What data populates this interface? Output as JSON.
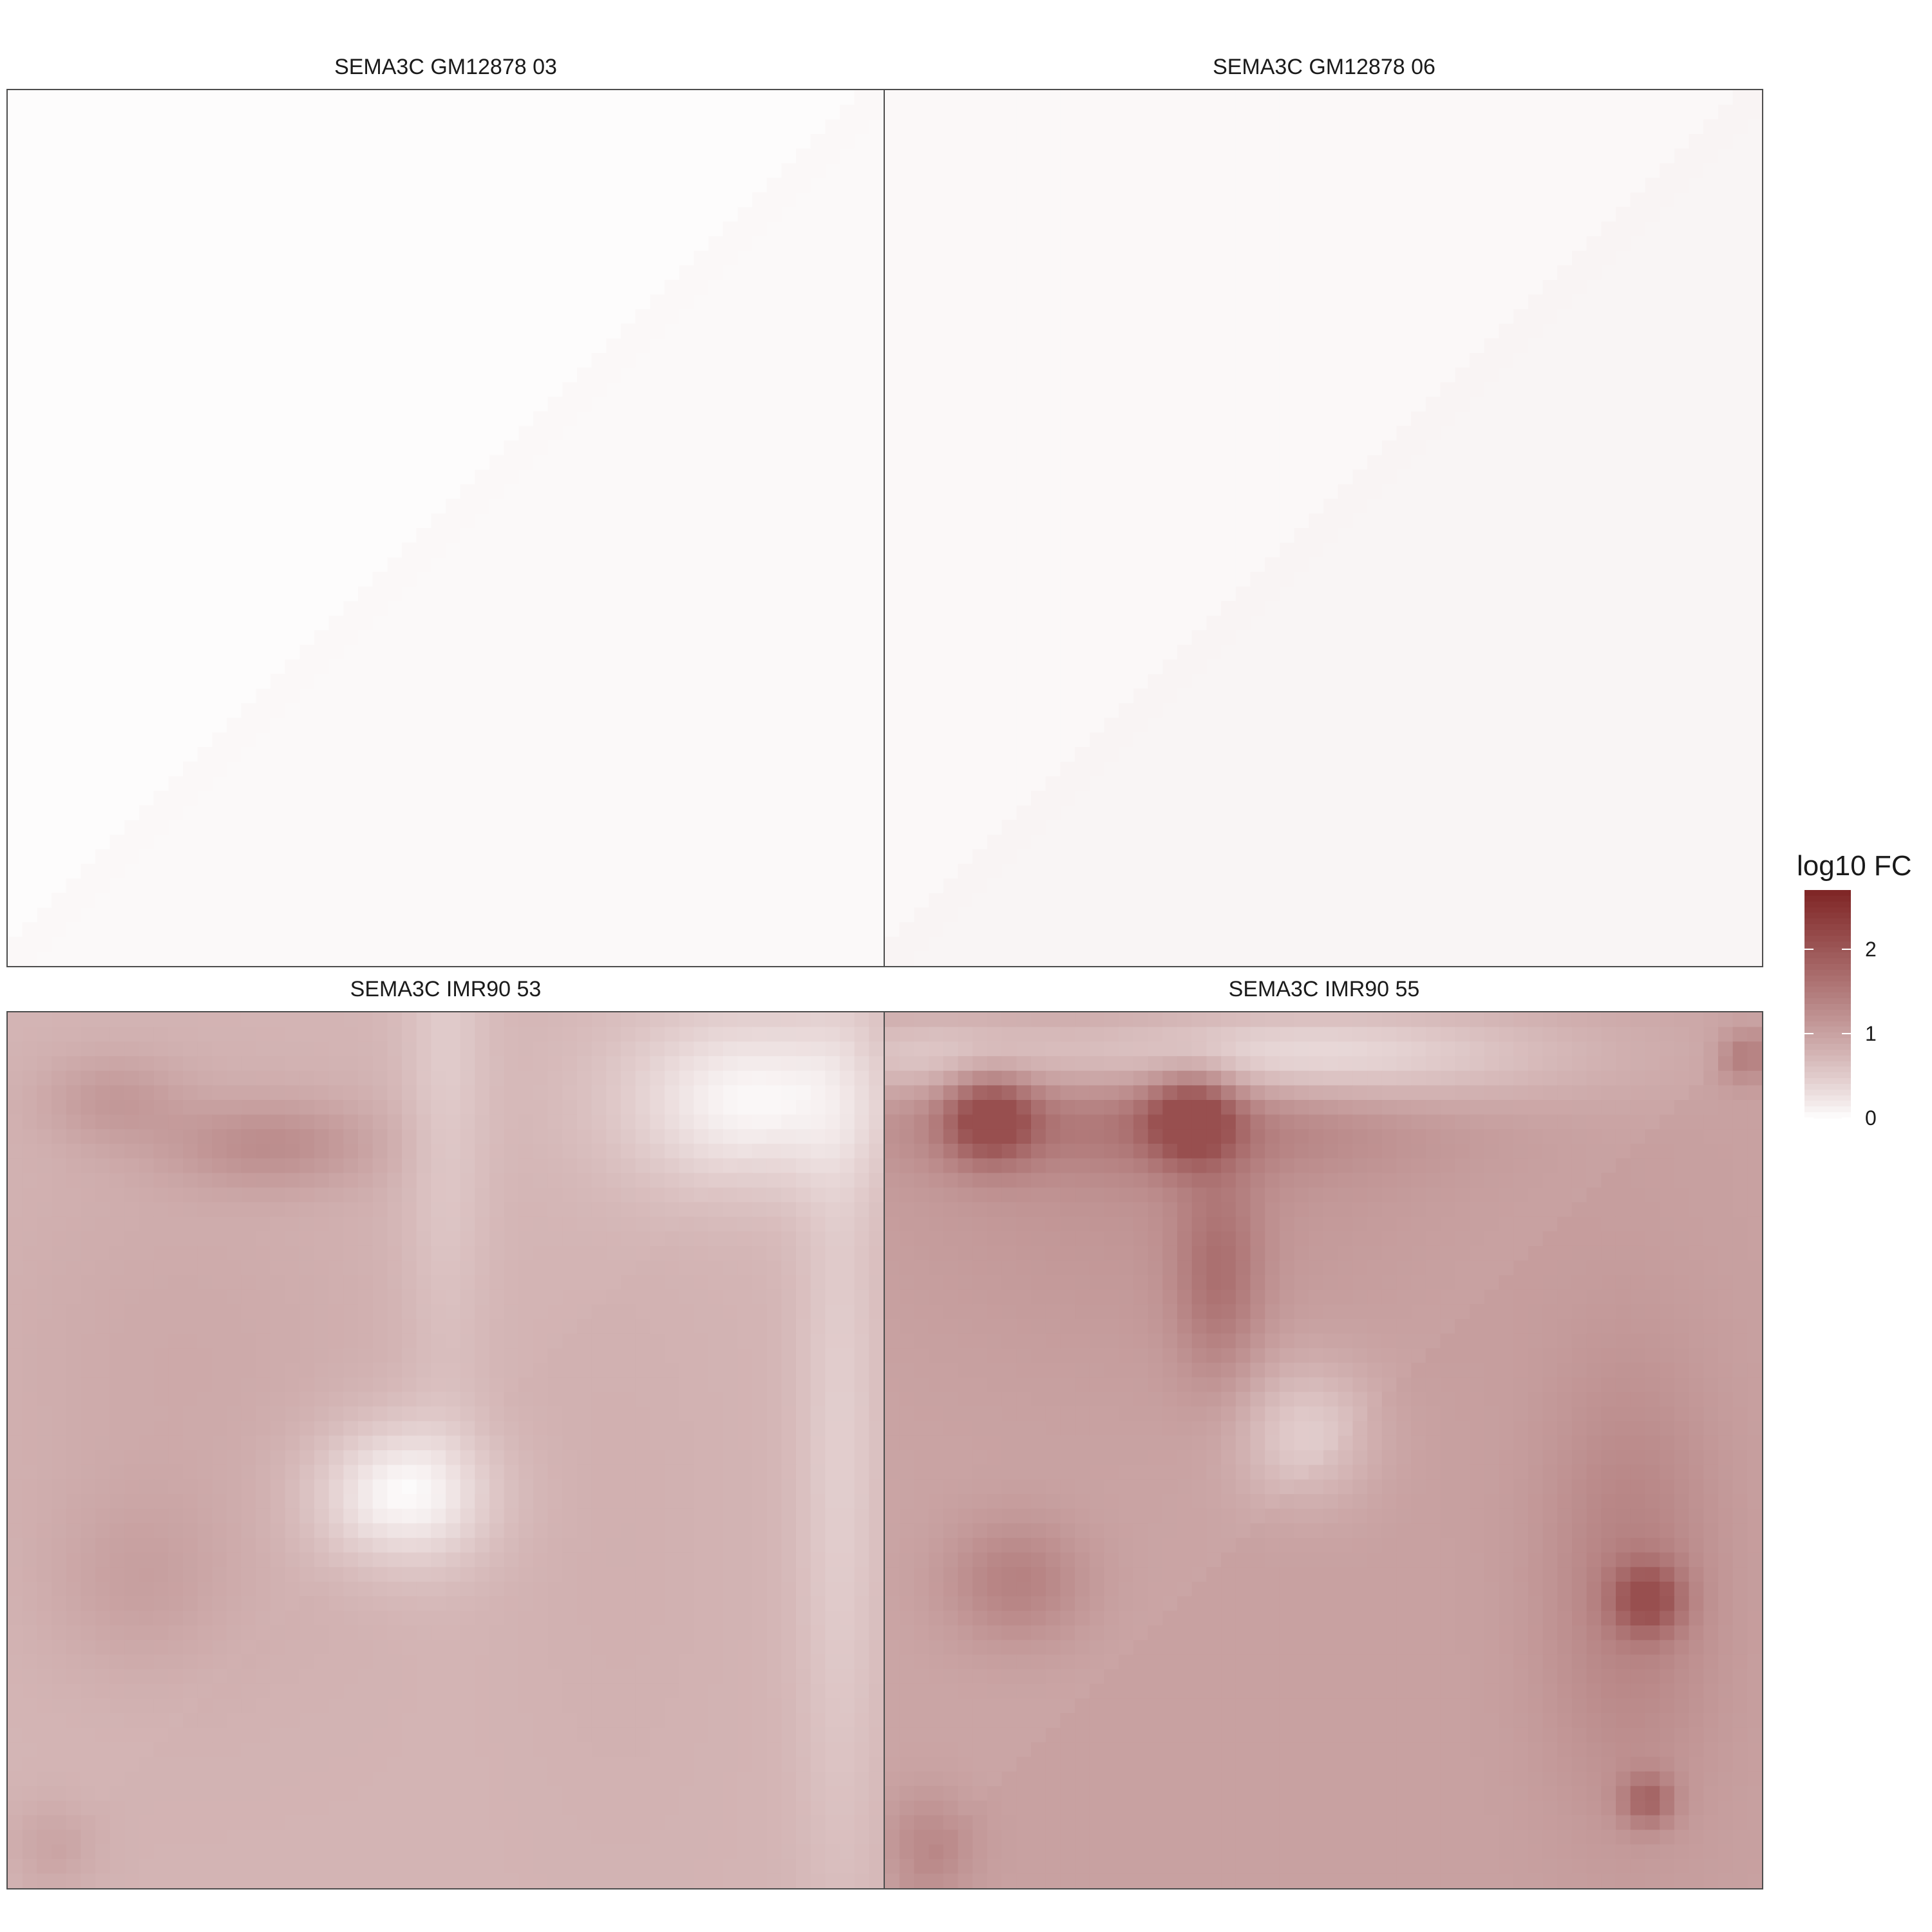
{
  "chart_data": {
    "type": "heatmap",
    "layout": "2x2 faceted panels",
    "panels": [
      {
        "title": "SEMA3C GM12878 03",
        "dominant_value": 0.02,
        "min_value": 0.0,
        "max_value": 0.05,
        "description_pattern": "uniform near-zero"
      },
      {
        "title": "SEMA3C GM12878 06",
        "dominant_value": 0.05,
        "min_value": 0.0,
        "max_value": 0.12,
        "description_pattern": "uniform near-zero"
      },
      {
        "title": "SEMA3C IMR90 53",
        "dominant_value": 0.75,
        "min_value": 0.0,
        "max_value": 1.6
      },
      {
        "title": "SEMA3C IMR90 55",
        "dominant_value": 0.95,
        "min_value": 0.1,
        "max_value": 2.1
      }
    ],
    "legend": {
      "title": "log10 FC",
      "ticks": [
        0,
        1,
        2
      ],
      "tick_labels": [
        "0",
        "1",
        "2"
      ],
      "range": [
        0,
        2.7
      ],
      "colors": {
        "low": "#ffffff",
        "high": "#7f2525"
      },
      "placement": "right"
    },
    "axes": {
      "x_ticks": "none",
      "y_ticks": "none"
    },
    "grid": false
  }
}
